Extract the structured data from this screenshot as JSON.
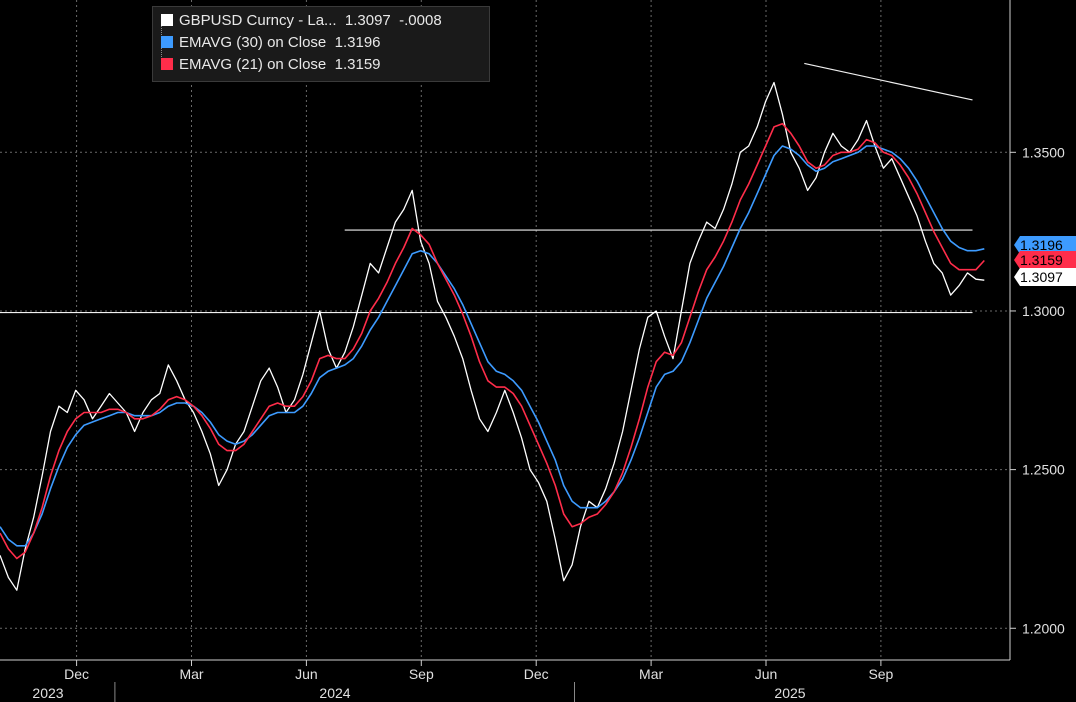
{
  "chart_data": {
    "type": "line",
    "legend": {
      "position": "top-left",
      "entries": [
        {
          "label": "GBPUSD Curncy - La...",
          "value": "1.3097",
          "change": "-.0008",
          "color": "#ffffff"
        },
        {
          "label": "EMAVG (30)  on Close",
          "value": "1.3196",
          "color": "#3d9bff"
        },
        {
          "label": "EMAVG (21)  on Close",
          "value": "1.3159",
          "color": "#ff2d4a"
        }
      ]
    },
    "y_axis": {
      "range": [
        1.19,
        1.398
      ],
      "ticks": [
        {
          "value": 1.2,
          "label": "1.2000"
        },
        {
          "value": 1.25,
          "label": "1.2500"
        },
        {
          "value": 1.3,
          "label": "1.3000"
        },
        {
          "value": 1.35,
          "label": "1.3500"
        }
      ],
      "grid": true
    },
    "x_axis": {
      "month_ticks": [
        "Dec",
        "Mar",
        "Jun",
        "Sep",
        "Dec",
        "Mar",
        "Jun",
        "Sep"
      ],
      "year_labels": [
        "2023",
        "2024",
        "2025"
      ],
      "grid": true
    },
    "value_tags": [
      {
        "label": "1.3196",
        "value": 1.3196,
        "color": "#3d9bff",
        "text_color": "#000000"
      },
      {
        "label": "1.3159",
        "value": 1.3159,
        "color": "#ff2d4a",
        "text_color": "#000000"
      },
      {
        "label": "1.3097",
        "value": 1.3097,
        "color": "#ffffff",
        "text_color": "#000000"
      }
    ],
    "trend_lines": [
      {
        "name": "horizontal-support",
        "from": {
          "date": "2023-10",
          "value": 1.2995
        },
        "to": {
          "date": "2025-11",
          "value": 1.2995
        }
      },
      {
        "name": "horizontal-resistance",
        "from": {
          "date": "2024-07",
          "value": 1.3255
        },
        "to": {
          "date": "2025-11",
          "value": 1.3255
        }
      },
      {
        "name": "descending-trendline",
        "from": {
          "date": "2025-07",
          "value": 1.378
        },
        "to": {
          "date": "2025-11",
          "value": 1.3665
        }
      }
    ],
    "x_start": "2023-10",
    "series": [
      {
        "name": "GBPUSD Curncy",
        "color": "#ffffff",
        "values": [
          1.223,
          1.216,
          1.212,
          1.225,
          1.235,
          1.248,
          1.262,
          1.27,
          1.268,
          1.275,
          1.272,
          1.266,
          1.27,
          1.274,
          1.271,
          1.268,
          1.262,
          1.268,
          1.272,
          1.274,
          1.283,
          1.278,
          1.272,
          1.268,
          1.262,
          1.255,
          1.245,
          1.25,
          1.258,
          1.262,
          1.27,
          1.278,
          1.282,
          1.276,
          1.268,
          1.272,
          1.28,
          1.29,
          1.3,
          1.288,
          1.282,
          1.287,
          1.295,
          1.305,
          1.315,
          1.312,
          1.32,
          1.328,
          1.332,
          1.338,
          1.322,
          1.315,
          1.303,
          1.298,
          1.292,
          1.285,
          1.275,
          1.266,
          1.262,
          1.268,
          1.275,
          1.268,
          1.26,
          1.25,
          1.246,
          1.24,
          1.228,
          1.215,
          1.22,
          1.232,
          1.24,
          1.238,
          1.244,
          1.252,
          1.262,
          1.275,
          1.288,
          1.298,
          1.3,
          1.292,
          1.285,
          1.3,
          1.315,
          1.322,
          1.328,
          1.326,
          1.332,
          1.34,
          1.35,
          1.352,
          1.358,
          1.366,
          1.372,
          1.362,
          1.35,
          1.345,
          1.338,
          1.342,
          1.35,
          1.356,
          1.352,
          1.35,
          1.354,
          1.36,
          1.352,
          1.345,
          1.348,
          1.342,
          1.336,
          1.33,
          1.322,
          1.315,
          1.312,
          1.305,
          1.308,
          1.312,
          1.31,
          1.3097
        ]
      },
      {
        "name": "EMAVG (21)",
        "color": "#ff2d4a",
        "values": [
          1.23,
          1.225,
          1.222,
          1.224,
          1.23,
          1.238,
          1.248,
          1.256,
          1.262,
          1.266,
          1.268,
          1.268,
          1.268,
          1.269,
          1.269,
          1.268,
          1.266,
          1.266,
          1.267,
          1.269,
          1.272,
          1.273,
          1.272,
          1.27,
          1.267,
          1.263,
          1.258,
          1.256,
          1.256,
          1.258,
          1.262,
          1.266,
          1.27,
          1.271,
          1.27,
          1.27,
          1.273,
          1.278,
          1.285,
          1.286,
          1.285,
          1.285,
          1.288,
          1.293,
          1.3,
          1.304,
          1.309,
          1.315,
          1.32,
          1.326,
          1.324,
          1.321,
          1.315,
          1.31,
          1.305,
          1.299,
          1.292,
          1.284,
          1.278,
          1.276,
          1.276,
          1.274,
          1.27,
          1.264,
          1.258,
          1.252,
          1.245,
          1.236,
          1.232,
          1.233,
          1.235,
          1.236,
          1.239,
          1.243,
          1.249,
          1.257,
          1.266,
          1.276,
          1.284,
          1.287,
          1.286,
          1.29,
          1.298,
          1.306,
          1.313,
          1.317,
          1.322,
          1.328,
          1.335,
          1.34,
          1.346,
          1.352,
          1.358,
          1.359,
          1.356,
          1.352,
          1.347,
          1.345,
          1.346,
          1.349,
          1.35,
          1.35,
          1.351,
          1.354,
          1.353,
          1.35,
          1.349,
          1.346,
          1.342,
          1.337,
          1.331,
          1.325,
          1.32,
          1.315,
          1.313,
          1.313,
          1.313,
          1.3159
        ]
      },
      {
        "name": "EMAVG (30)",
        "color": "#3d9bff",
        "values": [
          1.232,
          1.228,
          1.226,
          1.226,
          1.23,
          1.236,
          1.244,
          1.251,
          1.257,
          1.261,
          1.264,
          1.265,
          1.266,
          1.267,
          1.268,
          1.268,
          1.267,
          1.267,
          1.267,
          1.268,
          1.27,
          1.271,
          1.271,
          1.27,
          1.268,
          1.265,
          1.261,
          1.259,
          1.258,
          1.259,
          1.261,
          1.264,
          1.267,
          1.268,
          1.268,
          1.268,
          1.27,
          1.274,
          1.279,
          1.281,
          1.282,
          1.283,
          1.285,
          1.289,
          1.294,
          1.298,
          1.303,
          1.308,
          1.313,
          1.318,
          1.319,
          1.318,
          1.315,
          1.311,
          1.307,
          1.302,
          1.296,
          1.29,
          1.284,
          1.281,
          1.28,
          1.278,
          1.275,
          1.27,
          1.265,
          1.259,
          1.253,
          1.245,
          1.24,
          1.238,
          1.238,
          1.238,
          1.24,
          1.243,
          1.247,
          1.253,
          1.26,
          1.268,
          1.276,
          1.28,
          1.281,
          1.284,
          1.29,
          1.297,
          1.304,
          1.309,
          1.314,
          1.32,
          1.326,
          1.331,
          1.337,
          1.343,
          1.349,
          1.352,
          1.351,
          1.349,
          1.346,
          1.344,
          1.345,
          1.347,
          1.348,
          1.349,
          1.35,
          1.352,
          1.352,
          1.351,
          1.35,
          1.348,
          1.345,
          1.341,
          1.336,
          1.331,
          1.326,
          1.322,
          1.32,
          1.319,
          1.319,
          1.3196
        ]
      }
    ]
  }
}
